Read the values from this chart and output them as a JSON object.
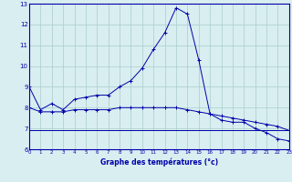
{
  "xlabel": "Graphe des températures (°c)",
  "bg_color": "#d8eef0",
  "grid_color": "#aacccc",
  "line_color": "#0000aa",
  "marker": "+",
  "ylim": [
    6,
    13
  ],
  "xlim": [
    0,
    23
  ],
  "yticks": [
    6,
    7,
    8,
    9,
    10,
    11,
    12,
    13
  ],
  "xticks": [
    0,
    1,
    2,
    3,
    4,
    5,
    6,
    7,
    8,
    9,
    10,
    11,
    12,
    13,
    14,
    15,
    16,
    17,
    18,
    19,
    20,
    21,
    22,
    23
  ],
  "line1_x": [
    0,
    1,
    2,
    3,
    4,
    5,
    6,
    7,
    8,
    9,
    10,
    11,
    12,
    13,
    14,
    15,
    16,
    17,
    18,
    19,
    20,
    21,
    22,
    23
  ],
  "line1_y": [
    9.0,
    7.9,
    8.2,
    7.9,
    8.4,
    8.5,
    8.6,
    8.6,
    9.0,
    9.3,
    9.9,
    10.8,
    11.6,
    12.8,
    12.5,
    10.3,
    7.7,
    7.4,
    7.3,
    7.3,
    7.0,
    6.8,
    6.5,
    6.4
  ],
  "line2_x": [
    0,
    1,
    2,
    3,
    4,
    5,
    6,
    7,
    8,
    9,
    10,
    11,
    12,
    13,
    14,
    15,
    16,
    17,
    18,
    19,
    20,
    21,
    22,
    23
  ],
  "line2_y": [
    8.0,
    7.8,
    7.8,
    7.8,
    7.9,
    7.9,
    7.9,
    7.9,
    8.0,
    8.0,
    8.0,
    8.0,
    8.0,
    8.0,
    7.9,
    7.8,
    7.7,
    7.6,
    7.5,
    7.4,
    7.3,
    7.2,
    7.1,
    6.9
  ],
  "line3_x": [
    0,
    1,
    2,
    3,
    4,
    5,
    6,
    7,
    8,
    9,
    10,
    11,
    12,
    13,
    14,
    15,
    16,
    17,
    18,
    19,
    20,
    21,
    22,
    23
  ],
  "line3_y": [
    6.9,
    6.9,
    6.9,
    6.9,
    6.9,
    6.9,
    6.9,
    6.9,
    6.9,
    6.9,
    6.9,
    6.9,
    6.9,
    6.9,
    6.9,
    6.9,
    6.9,
    6.9,
    6.9,
    6.9,
    6.9,
    6.9,
    6.9,
    6.9
  ]
}
